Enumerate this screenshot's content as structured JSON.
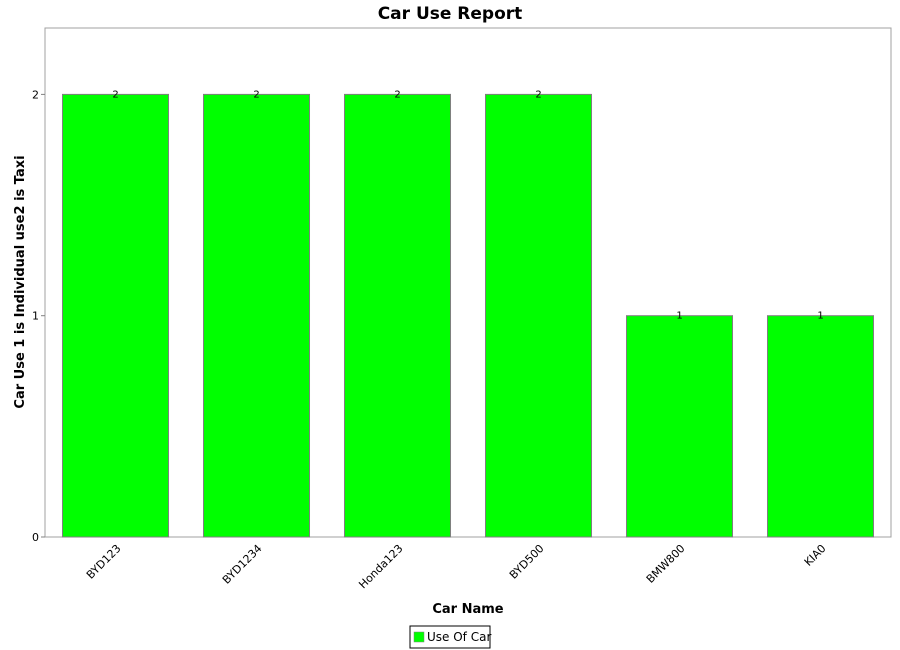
{
  "chart_data": {
    "type": "bar",
    "title": "Car Use Report",
    "xlabel": "Car Name",
    "ylabel": "Car Use 1 is Individual use2 is Taxi",
    "categories": [
      "BYD123",
      "BYD1234",
      "Honda123",
      "BYD500",
      "BMW800",
      "KIA0"
    ],
    "series": [
      {
        "name": "Use Of Car",
        "values": [
          2,
          2,
          2,
          2,
          1,
          1
        ],
        "color": "#00ff00"
      }
    ],
    "ylim": [
      0,
      2.3
    ],
    "yticks": [
      0,
      1,
      2
    ],
    "data_labels": true,
    "grid": false,
    "legend_position": "bottom-center"
  }
}
